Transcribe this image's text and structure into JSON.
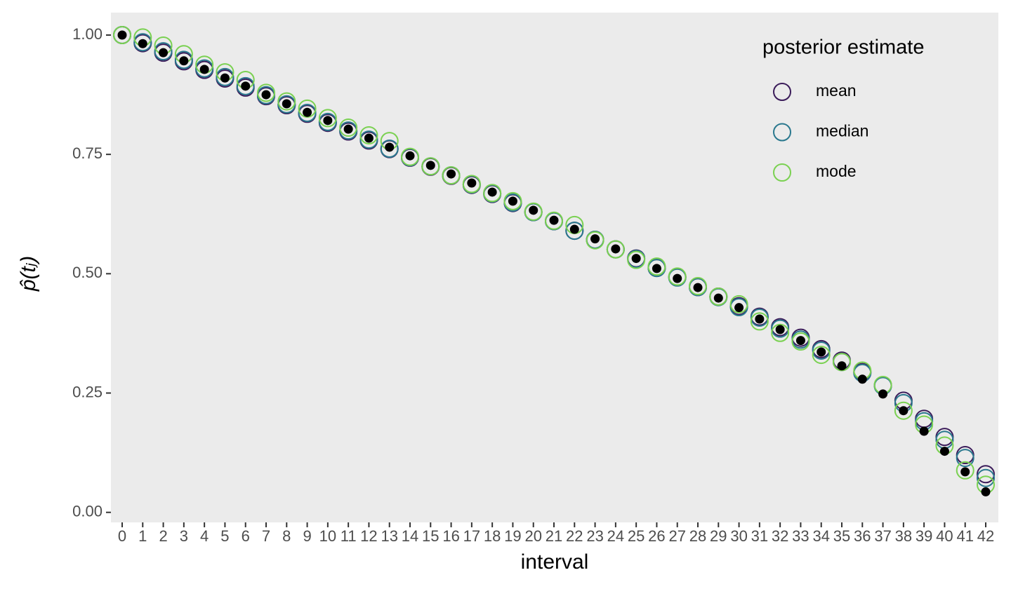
{
  "chart_data": {
    "type": "scatter",
    "x_label": "interval",
    "y_label": "p̂(tⱼ)",
    "legend_title": "posterior estimate",
    "legend_position": "top-right",
    "grid": false,
    "categories": [
      "0",
      "1",
      "2",
      "3",
      "4",
      "5",
      "6",
      "7",
      "8",
      "9",
      "10",
      "11",
      "12",
      "13",
      "14",
      "15",
      "16",
      "17",
      "18",
      "19",
      "20",
      "21",
      "22",
      "23",
      "24",
      "25",
      "26",
      "27",
      "28",
      "29",
      "30",
      "31",
      "32",
      "33",
      "34",
      "35",
      "36",
      "37",
      "38",
      "39",
      "40",
      "41",
      "42"
    ],
    "ylim": [
      -0.021,
      1.047
    ],
    "yticks": [
      {
        "value": 0,
        "label": "0.00"
      },
      {
        "value": 0.25,
        "label": "0.25"
      },
      {
        "value": 0.5,
        "label": "0.50"
      },
      {
        "value": 0.75,
        "label": "0.75"
      },
      {
        "value": 1,
        "label": "1.00"
      }
    ],
    "series": [
      {
        "name": "mean",
        "color": "#3b1c5a",
        "values": [
          1.0,
          0.983,
          0.963,
          0.945,
          0.927,
          0.909,
          0.89,
          0.872,
          0.853,
          0.835,
          0.816,
          0.798,
          0.779,
          0.761,
          0.743,
          0.724,
          0.705,
          0.686,
          0.667,
          0.648,
          0.629,
          0.61,
          0.59,
          0.571,
          0.551,
          0.532,
          0.512,
          0.493,
          0.472,
          0.452,
          0.432,
          0.41,
          0.388,
          0.366,
          0.342,
          0.318,
          0.294,
          0.266,
          0.234,
          0.196,
          0.158,
          0.12,
          0.08
        ]
      },
      {
        "name": "median",
        "color": "#2a788e",
        "values": [
          1.0,
          0.985,
          0.966,
          0.948,
          0.93,
          0.912,
          0.893,
          0.874,
          0.855,
          0.837,
          0.818,
          0.8,
          0.781,
          0.762,
          0.744,
          0.725,
          0.706,
          0.687,
          0.668,
          0.649,
          0.629,
          0.61,
          0.59,
          0.571,
          0.551,
          0.531,
          0.512,
          0.492,
          0.472,
          0.451,
          0.43,
          0.408,
          0.385,
          0.362,
          0.339,
          0.315,
          0.292,
          0.265,
          0.229,
          0.191,
          0.152,
          0.114,
          0.072
        ]
      },
      {
        "name": "mode",
        "color": "#7ad151",
        "values": [
          1.0,
          0.995,
          0.978,
          0.96,
          0.938,
          0.922,
          0.906,
          0.879,
          0.861,
          0.846,
          0.826,
          0.806,
          0.79,
          0.778,
          0.745,
          0.725,
          0.706,
          0.688,
          0.669,
          0.652,
          0.63,
          0.611,
          0.602,
          0.57,
          0.551,
          0.529,
          0.515,
          0.494,
          0.474,
          0.452,
          0.436,
          0.4,
          0.376,
          0.358,
          0.33,
          0.315,
          0.297,
          0.267,
          0.213,
          0.184,
          0.14,
          0.088,
          0.058
        ]
      },
      {
        "color": "#000000",
        "values": [
          1.0,
          0.982,
          0.963,
          0.946,
          0.928,
          0.91,
          0.893,
          0.875,
          0.856,
          0.838,
          0.821,
          0.803,
          0.784,
          0.765,
          0.747,
          0.727,
          0.709,
          0.69,
          0.671,
          0.652,
          0.633,
          0.612,
          0.593,
          0.573,
          0.552,
          0.532,
          0.511,
          0.49,
          0.471,
          0.449,
          0.429,
          0.405,
          0.383,
          0.36,
          0.336,
          0.307,
          0.279,
          0.248,
          0.213,
          0.17,
          0.128,
          0.085,
          0.043
        ]
      }
    ]
  }
}
